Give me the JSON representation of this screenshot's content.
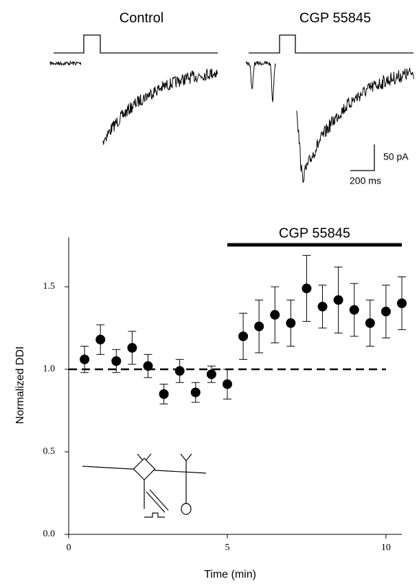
{
  "chart_data": {
    "type": "scatter",
    "x_label": "Time (min)",
    "y_label": "Normalized DDI",
    "x": [
      0.5,
      1,
      1.5,
      2,
      2.5,
      3,
      3.5,
      4,
      4.5,
      5,
      5.5,
      6,
      6.5,
      7,
      7.5,
      8,
      8.5,
      9,
      9.5,
      10,
      10.5
    ],
    "series": [
      {
        "color": "#000000",
        "values": [
          1.06,
          1.18,
          1.05,
          1.13,
          1.02,
          0.85,
          0.99,
          0.86,
          0.97,
          0.91,
          1.2,
          1.26,
          1.33,
          1.28,
          1.49,
          1.38,
          1.42,
          1.36,
          1.28,
          1.35,
          1.4
        ],
        "errors": [
          0.08,
          0.09,
          0.07,
          0.1,
          0.07,
          0.06,
          0.07,
          0.06,
          0.05,
          0.09,
          0.14,
          0.16,
          0.17,
          0.14,
          0.2,
          0.13,
          0.2,
          0.16,
          0.14,
          0.16,
          0.16
        ]
      }
    ],
    "xlim": [
      0,
      10.5
    ],
    "ylim": [
      0,
      1.8
    ],
    "xticks": [
      0,
      5,
      10
    ],
    "yticks": [
      {
        "value": 0,
        "label": "0.0"
      },
      {
        "value": 0.5,
        "label": "0.5"
      },
      {
        "value": 1,
        "label": "1.0"
      },
      {
        "value": 1.5,
        "label": "1.5"
      }
    ],
    "reference_line": {
      "value": 1,
      "start": 0,
      "end": 10
    },
    "treatment_bar": {
      "label": "CGP 55845",
      "start": 5,
      "end": 10.5
    }
  },
  "traces": {
    "labels": [
      "Control",
      "CGP 55845"
    ],
    "scale_current": "50 pA",
    "scale_time": "200 ms"
  }
}
